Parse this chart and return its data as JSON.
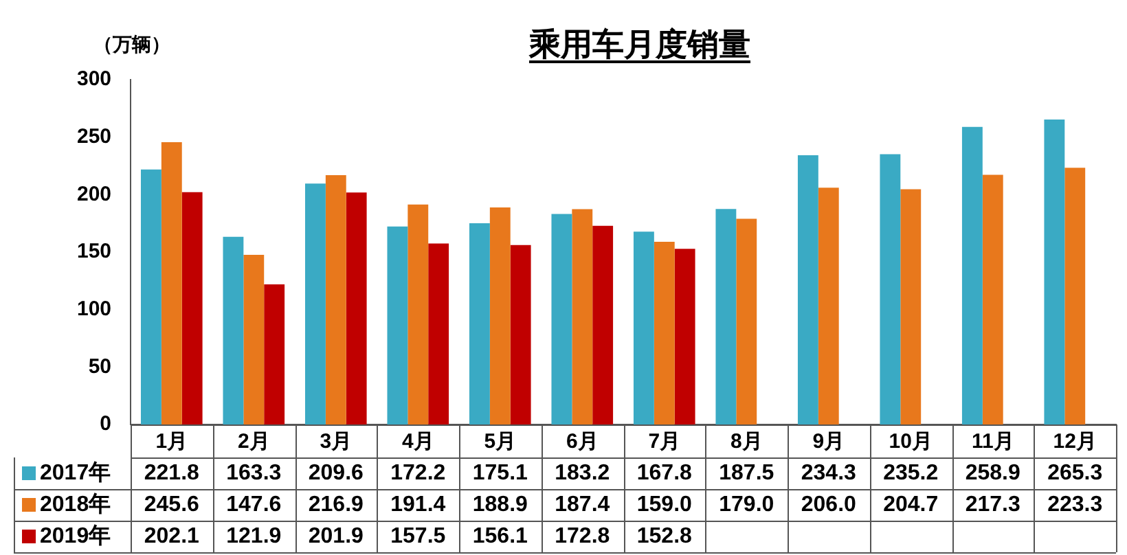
{
  "chart_data": {
    "type": "bar",
    "title": "乘用车月度销量",
    "ylabel": "（万辆）",
    "categories": [
      "1月",
      "2月",
      "3月",
      "4月",
      "5月",
      "6月",
      "7月",
      "8月",
      "9月",
      "10月",
      "11月",
      "12月"
    ],
    "series": [
      {
        "name": "2017年",
        "color": "#3aaac4",
        "values": [
          221.8,
          163.3,
          209.6,
          172.2,
          175.1,
          183.2,
          167.8,
          187.5,
          234.3,
          235.2,
          258.9,
          265.3
        ],
        "value_labels": [
          "221.8",
          "163.3",
          "209.6",
          "172.2",
          "175.1",
          "183.2",
          "167.8",
          "187.5",
          "234.3",
          "235.2",
          "258.9",
          "265.3"
        ]
      },
      {
        "name": "2018年",
        "color": "#e8781c",
        "values": [
          245.6,
          147.6,
          216.9,
          191.4,
          188.9,
          187.4,
          159.0,
          179.0,
          206.0,
          204.7,
          217.3,
          223.3
        ],
        "value_labels": [
          "245.6",
          "147.6",
          "216.9",
          "191.4",
          "188.9",
          "187.4",
          "159.0",
          "179.0",
          "206.0",
          "204.7",
          "217.3",
          "223.3"
        ]
      },
      {
        "name": "2019年",
        "color": "#c00000",
        "values": [
          202.1,
          121.9,
          201.9,
          157.5,
          156.1,
          172.8,
          152.8,
          null,
          null,
          null,
          null,
          null
        ],
        "value_labels": [
          "202.1",
          "121.9",
          "201.9",
          "157.5",
          "156.1",
          "172.8",
          "152.8",
          null,
          null,
          null,
          null,
          null
        ]
      }
    ],
    "ylim": [
      0,
      300
    ],
    "yticks": [
      0,
      50,
      100,
      150,
      200,
      250,
      300
    ],
    "grid": false,
    "legend": "bottom left"
  }
}
